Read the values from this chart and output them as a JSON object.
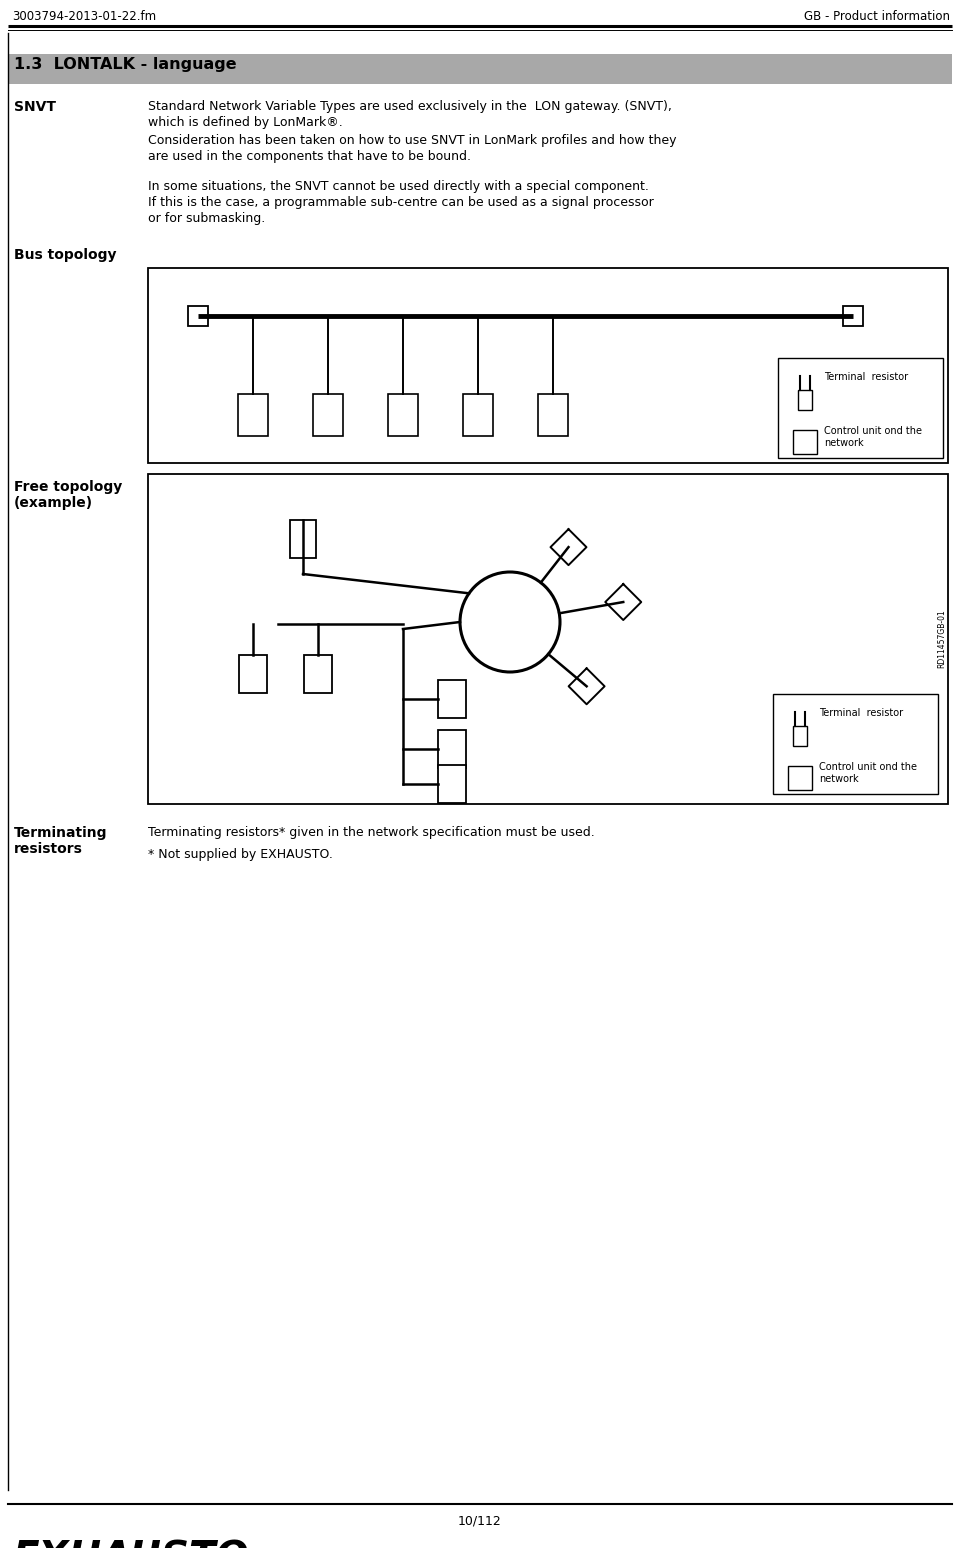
{
  "header_left": "3003794-2013-01-22.fm",
  "header_right": "GB - Product information",
  "section_title": "1.3  LONTALK - language",
  "section_bg": "#a8a8a8",
  "label_snvt": "SNVT",
  "text_snvt_1": "Standard Network Variable Types are used exclusively in the  LON gateway. (SNVT),",
  "text_snvt_2": "which is defined by LonMark®.",
  "text_snvt_3": "Consideration has been taken on how to use SNVT in LonMark profiles and how they",
  "text_snvt_4": "are used in the components that have to be bound.",
  "text_snvt_5": "In some situations, the SNVT cannot be used directly with a special component.",
  "text_snvt_6": "If this is the case, a programmable sub-centre can be used as a signal processor",
  "text_snvt_7": "or for submasking.",
  "label_bus": "Bus topology",
  "label_free_1": "Free topology",
  "label_free_2": "(example)",
  "label_term_1": "Terminating",
  "label_term_2": "resistors",
  "text_term_1": "Terminating resistors* given in the network specification must be used.",
  "text_term_2": "* Not supplied by EXHAUSTO.",
  "legend_terminal": "Terminal  resistor",
  "legend_control_1": "Control unit ond the",
  "legend_control_2": "network",
  "side_label": "RD11457GB-01",
  "footer_text": "10/112",
  "footer_logo": "EXHAUSTO",
  "bg_color": "#ffffff"
}
